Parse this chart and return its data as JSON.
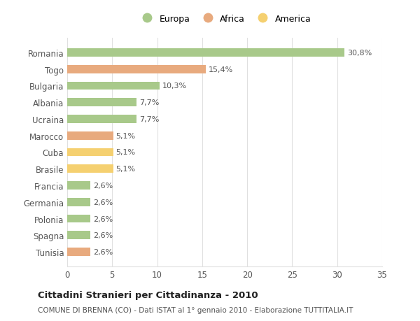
{
  "categories": [
    "Romania",
    "Togo",
    "Bulgaria",
    "Albania",
    "Ucraina",
    "Marocco",
    "Cuba",
    "Brasile",
    "Francia",
    "Germania",
    "Polonia",
    "Spagna",
    "Tunisia"
  ],
  "values": [
    30.8,
    15.4,
    10.3,
    7.7,
    7.7,
    5.1,
    5.1,
    5.1,
    2.6,
    2.6,
    2.6,
    2.6,
    2.6
  ],
  "labels": [
    "30,8%",
    "15,4%",
    "10,3%",
    "7,7%",
    "7,7%",
    "5,1%",
    "5,1%",
    "5,1%",
    "2,6%",
    "2,6%",
    "2,6%",
    "2,6%",
    "2,6%"
  ],
  "colors": [
    "#a8c98a",
    "#e8aa7e",
    "#a8c98a",
    "#a8c98a",
    "#a8c98a",
    "#e8aa7e",
    "#f5d070",
    "#f5d070",
    "#a8c98a",
    "#a8c98a",
    "#a8c98a",
    "#a8c98a",
    "#e8aa7e"
  ],
  "legend_labels": [
    "Europa",
    "Africa",
    "America"
  ],
  "legend_colors": [
    "#a8c98a",
    "#e8aa7e",
    "#f5d070"
  ],
  "title": "Cittadini Stranieri per Cittadinanza - 2010",
  "subtitle": "COMUNE DI BRENNA (CO) - Dati ISTAT al 1° gennaio 2010 - Elaborazione TUTTITALIA.IT",
  "xlim": [
    0,
    35
  ],
  "xticks": [
    0,
    5,
    10,
    15,
    20,
    25,
    30,
    35
  ],
  "background_color": "#ffffff",
  "grid_color": "#e0e0e0",
  "bar_height": 0.5
}
